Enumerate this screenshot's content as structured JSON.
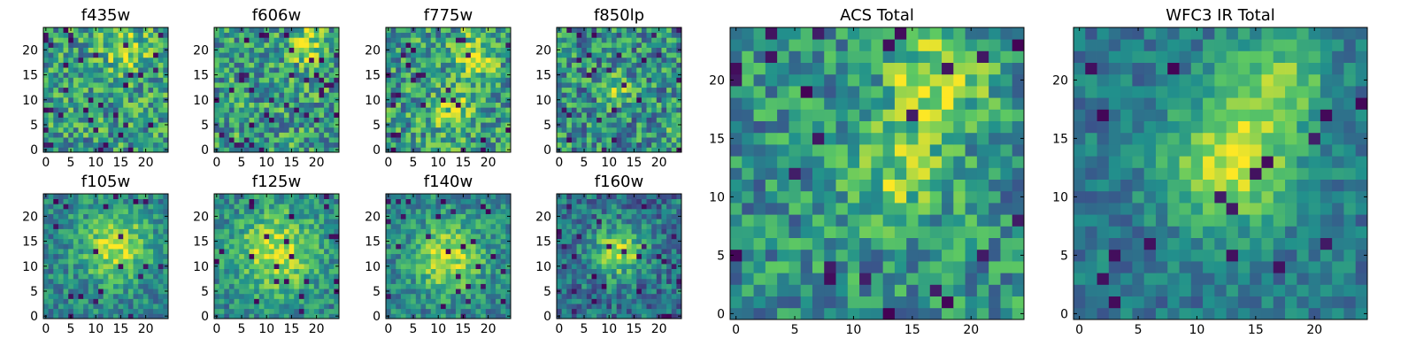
{
  "figure": {
    "colormap": "viridis",
    "colormap_stops": [
      "#440154",
      "#3b528b",
      "#21918c",
      "#5ec962",
      "#fde725"
    ]
  },
  "chart_data": [
    {
      "type": "heatmap",
      "title": "f435w",
      "xticks": [
        0,
        5,
        10,
        15,
        20
      ],
      "yticks": [
        0,
        5,
        10,
        15,
        20
      ],
      "xlim": [
        -0.5,
        24.5
      ],
      "ylim": [
        -0.5,
        24.5
      ],
      "grid_size": [
        25,
        25
      ],
      "hotspots": [
        {
          "x": 16,
          "y": 20,
          "amp": 0.35,
          "sigma": 3
        }
      ],
      "noise": 0.3,
      "base": 0.55,
      "dark_fraction": 0.05,
      "seed": 11
    },
    {
      "type": "heatmap",
      "title": "f606w",
      "xticks": [
        0,
        5,
        10,
        15,
        20
      ],
      "yticks": [
        0,
        5,
        10,
        15,
        20
      ],
      "xlim": [
        -0.5,
        24.5
      ],
      "ylim": [
        -0.5,
        24.5
      ],
      "grid_size": [
        25,
        25
      ],
      "hotspots": [
        {
          "x": 18,
          "y": 21,
          "amp": 0.35,
          "sigma": 2.5
        }
      ],
      "noise": 0.3,
      "base": 0.55,
      "dark_fraction": 0.05,
      "seed": 23
    },
    {
      "type": "heatmap",
      "title": "f775w",
      "xticks": [
        0,
        5,
        10,
        15,
        20
      ],
      "yticks": [
        0,
        5,
        10,
        15,
        20
      ],
      "xlim": [
        -0.5,
        24.5
      ],
      "ylim": [
        -0.5,
        24.5
      ],
      "grid_size": [
        25,
        25
      ],
      "hotspots": [
        {
          "x": 17,
          "y": 19,
          "amp": 0.35,
          "sigma": 3
        },
        {
          "x": 13,
          "y": 8,
          "amp": 0.25,
          "sigma": 3
        }
      ],
      "noise": 0.3,
      "base": 0.55,
      "dark_fraction": 0.05,
      "seed": 37
    },
    {
      "type": "heatmap",
      "title": "f850lp",
      "xticks": [
        0,
        5,
        10,
        15,
        20
      ],
      "yticks": [
        0,
        5,
        10,
        15,
        20
      ],
      "xlim": [
        -0.5,
        24.5
      ],
      "ylim": [
        -0.5,
        24.5
      ],
      "grid_size": [
        25,
        25
      ],
      "hotspots": [
        {
          "x": 12,
          "y": 12,
          "amp": 0.3,
          "sigma": 2
        },
        {
          "x": 23,
          "y": 5,
          "amp": 0.3,
          "sigma": 1.5
        }
      ],
      "noise": 0.3,
      "base": 0.5,
      "dark_fraction": 0.06,
      "seed": 41
    },
    {
      "type": "heatmap",
      "title": "f105w",
      "xticks": [
        0,
        5,
        10,
        15,
        20
      ],
      "yticks": [
        0,
        5,
        10,
        15,
        20
      ],
      "xlim": [
        -0.5,
        24.5
      ],
      "ylim": [
        -0.5,
        24.5
      ],
      "grid_size": [
        25,
        25
      ],
      "hotspots": [
        {
          "x": 14,
          "y": 14,
          "amp": 0.45,
          "sigma": 5
        }
      ],
      "noise": 0.2,
      "base": 0.45,
      "dark_fraction": 0.04,
      "seed": 53
    },
    {
      "type": "heatmap",
      "title": "f125w",
      "xticks": [
        0,
        5,
        10,
        15,
        20
      ],
      "yticks": [
        0,
        5,
        10,
        15,
        20
      ],
      "xlim": [
        -0.5,
        24.5
      ],
      "ylim": [
        -0.5,
        24.5
      ],
      "grid_size": [
        25,
        25
      ],
      "hotspots": [
        {
          "x": 12,
          "y": 13,
          "amp": 0.45,
          "sigma": 6
        }
      ],
      "noise": 0.2,
      "base": 0.45,
      "dark_fraction": 0.04,
      "seed": 61
    },
    {
      "type": "heatmap",
      "title": "f140w",
      "xticks": [
        0,
        5,
        10,
        15,
        20
      ],
      "yticks": [
        0,
        5,
        10,
        15,
        20
      ],
      "xlim": [
        -0.5,
        24.5
      ],
      "ylim": [
        -0.5,
        24.5
      ],
      "grid_size": [
        25,
        25
      ],
      "hotspots": [
        {
          "x": 12,
          "y": 12,
          "amp": 0.45,
          "sigma": 5
        }
      ],
      "noise": 0.2,
      "base": 0.45,
      "dark_fraction": 0.04,
      "seed": 71
    },
    {
      "type": "heatmap",
      "title": "f160w",
      "xticks": [
        0,
        5,
        10,
        15,
        20
      ],
      "yticks": [
        0,
        5,
        10,
        15,
        20
      ],
      "xlim": [
        -0.5,
        24.5
      ],
      "ylim": [
        -0.5,
        24.5
      ],
      "grid_size": [
        25,
        25
      ],
      "hotspots": [
        {
          "x": 12,
          "y": 13,
          "amp": 0.5,
          "sigma": 3.5
        }
      ],
      "noise": 0.22,
      "base": 0.38,
      "dark_fraction": 0.05,
      "seed": 83
    },
    {
      "type": "heatmap",
      "title": "ACS Total",
      "xticks": [
        0,
        5,
        10,
        15,
        20
      ],
      "yticks": [
        0,
        5,
        10,
        15,
        20
      ],
      "xlim": [
        -0.5,
        24.5
      ],
      "ylim": [
        -0.5,
        24.5
      ],
      "grid_size": [
        25,
        25
      ],
      "hotspots": [
        {
          "x": 17,
          "y": 20,
          "amp": 0.4,
          "sigma": 3
        },
        {
          "x": 14,
          "y": 12,
          "amp": 0.3,
          "sigma": 3
        }
      ],
      "noise": 0.25,
      "base": 0.5,
      "dark_fraction": 0.04,
      "seed": 97
    },
    {
      "type": "heatmap",
      "title": "WFC3 IR Total",
      "xticks": [
        0,
        5,
        10,
        15,
        20
      ],
      "yticks": [
        0,
        5,
        10,
        15,
        20
      ],
      "xlim": [
        -0.5,
        24.5
      ],
      "ylim": [
        -0.5,
        24.5
      ],
      "grid_size": [
        25,
        25
      ],
      "hotspots": [
        {
          "x": 13,
          "y": 13,
          "amp": 0.5,
          "sigma": 4
        },
        {
          "x": 17,
          "y": 20,
          "amp": 0.35,
          "sigma": 3
        }
      ],
      "noise": 0.15,
      "base": 0.4,
      "dark_fraction": 0.04,
      "seed": 109
    }
  ]
}
